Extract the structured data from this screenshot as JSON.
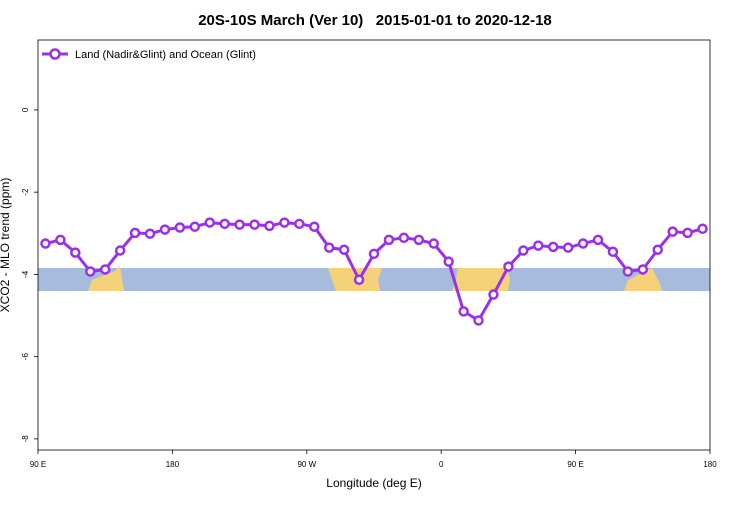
{
  "chart_data": {
    "type": "line",
    "title": "20S-10S March (Ver 10)   2015-01-01 to 2020-12-18",
    "x_label": "Longitude (deg E)",
    "y_label": "XCO2 - MLO trend (ppm)",
    "x": [
      95,
      105,
      115,
      125,
      135,
      145,
      155,
      165,
      175,
      185,
      195,
      205,
      215,
      225,
      235,
      245,
      255,
      265,
      275,
      285,
      295,
      305,
      315,
      325,
      335,
      345,
      355,
      365,
      375,
      385,
      395,
      405,
      415,
      425,
      435,
      445,
      455,
      465,
      475,
      485,
      495,
      505,
      515,
      525,
      535
    ],
    "series": [
      {
        "name": "Land (Nadir&Glint) and Ocean (Glint)",
        "color": "#9b30e6",
        "values": [
          -3.25,
          -3.16,
          -3.47,
          -3.93,
          -3.88,
          -3.42,
          -2.99,
          -3.01,
          -2.91,
          -2.86,
          -2.84,
          -2.74,
          -2.77,
          -2.79,
          -2.79,
          -2.82,
          -2.74,
          -2.77,
          -2.84,
          -3.35,
          -3.4,
          -4.13,
          -3.5,
          -3.16,
          -3.11,
          -3.16,
          -3.25,
          -3.69,
          -4.9,
          -5.12,
          -4.49,
          -3.81,
          -3.42,
          -3.3,
          -3.33,
          -3.35,
          -3.25,
          -3.16,
          -3.45,
          -3.93,
          -3.88,
          -3.4,
          -2.96,
          -2.99,
          -2.89
        ]
      }
    ],
    "xlim": [
      90,
      540
    ],
    "xticks": [
      {
        "value": 90,
        "label": "90 E"
      },
      {
        "value": 180,
        "label": "180"
      },
      {
        "value": 270,
        "label": "90 W"
      },
      {
        "value": 360,
        "label": "0"
      },
      {
        "value": 450,
        "label": "90 E"
      },
      {
        "value": 540,
        "label": "180"
      }
    ],
    "ylim": [
      -8.27,
      1.7
    ],
    "yticks": [
      0,
      -2,
      -4,
      -6,
      -8
    ],
    "legend": "top-left"
  }
}
